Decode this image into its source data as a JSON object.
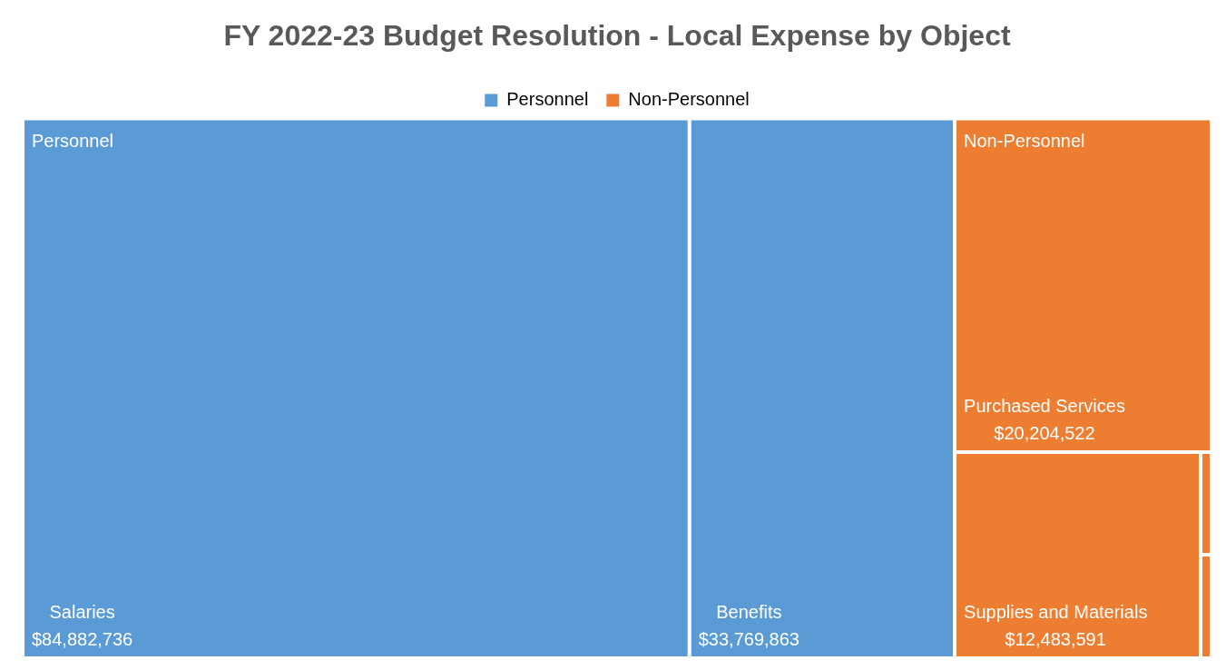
{
  "chart_data": {
    "type": "other",
    "title": "FY 2022-23 Budget Resolution - Local Expense by Object",
    "legend": "top",
    "categories": [
      "Salaries",
      "Benefits",
      "Purchased Services",
      "Supplies and Materials"
    ],
    "series": [
      {
        "name": "Personnel",
        "color": "#5b9bd5",
        "values": [
          84882736,
          33769863,
          null,
          null
        ],
        "value_labels": [
          "$84,882,736",
          "$33,769,863",
          null,
          null
        ]
      },
      {
        "name": "Non-Personnel",
        "color": "#ed7d31",
        "values": [
          null,
          null,
          20204522,
          12483591
        ],
        "value_labels": [
          null,
          null,
          "$20,204,522",
          "$12,483,591"
        ]
      }
    ]
  }
}
